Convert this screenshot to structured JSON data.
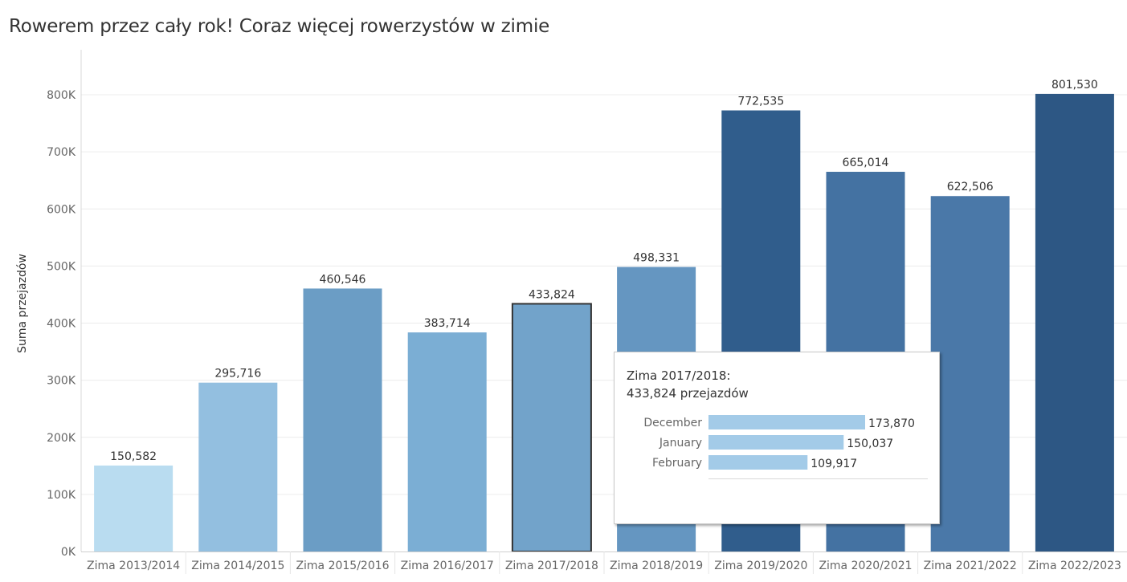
{
  "title": "Rowerem przez cały rok! Coraz więcej rowerzystów w zimie",
  "chart_data": {
    "type": "bar",
    "title": "Rowerem przez cały rok! Coraz więcej rowerzystów w zimie",
    "xlabel": "",
    "ylabel": "Suma przejazdów",
    "ylim": [
      0,
      860000
    ],
    "yticks": [
      0,
      100000,
      200000,
      300000,
      400000,
      500000,
      600000,
      700000,
      800000
    ],
    "ytick_labels": [
      "0K",
      "100K",
      "200K",
      "300K",
      "400K",
      "500K",
      "600K",
      "700K",
      "800K"
    ],
    "grid": true,
    "categories": [
      "Zima 2013/2014",
      "Zima 2014/2015",
      "Zima 2015/2016",
      "Zima 2016/2017",
      "Zima 2017/2018",
      "Zima 2018/2019",
      "Zima 2019/2020",
      "Zima 2020/2021",
      "Zima 2021/2022",
      "Zima 2022/2023"
    ],
    "values": [
      150582,
      295716,
      460546,
      383714,
      433824,
      498331,
      772535,
      665014,
      622506,
      801530
    ],
    "value_labels": [
      "150,582",
      "295,716",
      "460,546",
      "383,714",
      "433,824",
      "498,331",
      "772,535",
      "665,014",
      "622,506",
      "801,530"
    ],
    "colors": [
      "#b9dcf0",
      "#93bfe0",
      "#6b9dc5",
      "#7baed4",
      "#72a3ca",
      "#6596c1",
      "#305d8c",
      "#4472a2",
      "#4a78a8",
      "#2d5784"
    ],
    "highlighted": "Zima 2017/2018"
  },
  "tooltip": {
    "line1": "Zima 2017/2018:",
    "line2": "433,824 przejazdów",
    "chart_data": {
      "type": "bar",
      "orientation": "horizontal",
      "categories": [
        "December",
        "January",
        "February"
      ],
      "values": [
        173870,
        150037,
        109917
      ],
      "value_labels": [
        "173,870",
        "150,037",
        "109,917"
      ],
      "color": "#a3cbe8"
    }
  }
}
